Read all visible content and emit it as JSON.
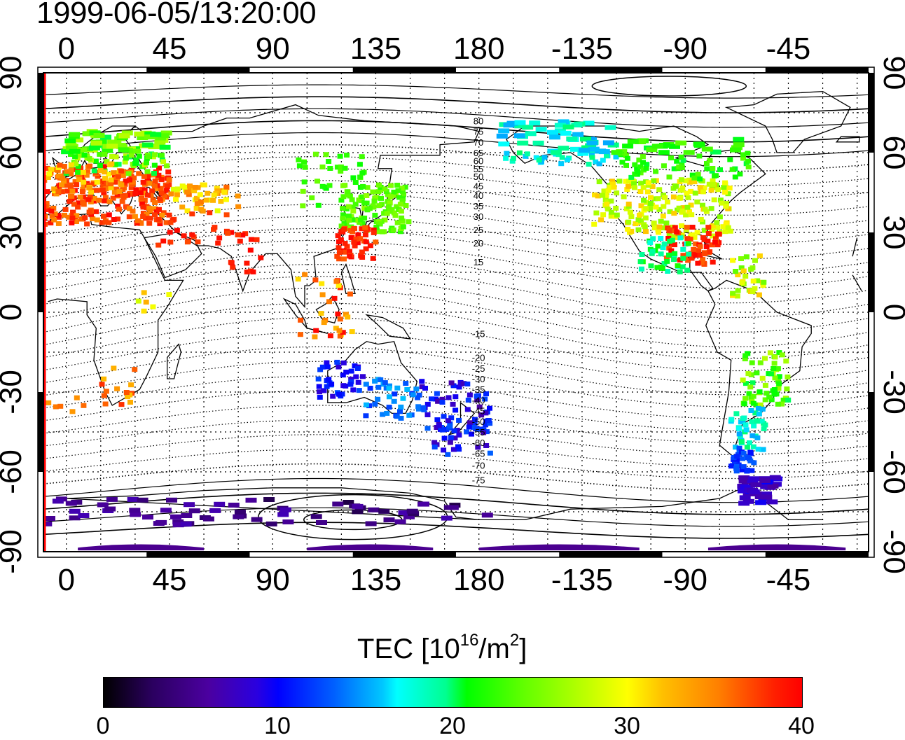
{
  "title": "1999-06-05/13:20:00",
  "map": {
    "top_lon_labels": [
      "0",
      "45",
      "90",
      "135",
      "180",
      "-135",
      "-90",
      "-45"
    ],
    "bottom_lon_labels": [
      "0",
      "45",
      "90",
      "135",
      "180",
      "-135",
      "-90",
      "-45"
    ],
    "left_lat_labels": [
      "90",
      "60",
      "30",
      "0",
      "-30",
      "-60",
      "-90"
    ],
    "right_lat_labels": [
      "90",
      "60",
      "30",
      "0",
      "-30",
      "-60",
      "-90"
    ],
    "contour_labels_north": [
      "80",
      "75",
      "70",
      "65",
      "60",
      "55",
      "50",
      "45",
      "40",
      "35",
      "30",
      "25",
      "20",
      "15"
    ],
    "contour_labels_south": [
      "-15",
      "-20",
      "-25",
      "-30",
      "-35",
      "-40",
      "-45",
      "-50",
      "-55",
      "-60",
      "-65",
      "-70",
      "-75"
    ],
    "colors": {
      "frame": "#000000",
      "grid": "#000000",
      "edge_line": "#ff0000"
    }
  },
  "colorbar": {
    "title_prefix": "TEC  [10",
    "title_exp": "16",
    "title_mid": "/m",
    "title_exp2": "2",
    "title_suffix": "]",
    "ticks": [
      "0",
      "10",
      "20",
      "30",
      "40"
    ],
    "min": 0,
    "max": 40
  }
}
